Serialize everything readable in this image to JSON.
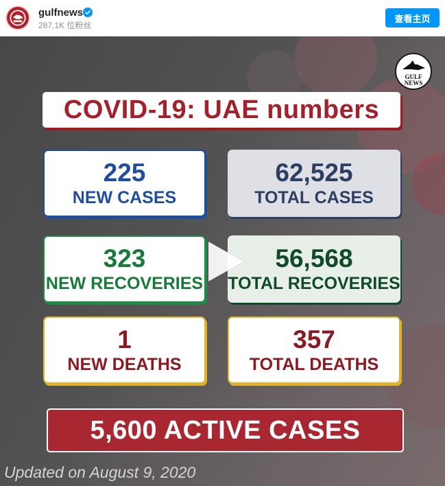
{
  "header": {
    "username": "gulfnews",
    "verified": true,
    "followers": "287.1K 位粉丝",
    "view_profile_label": "查看主页",
    "accent_color": "#0095f6"
  },
  "post": {
    "logo_text": "GULF NEWS",
    "title": "COVID-19: UAE numbers",
    "stats": [
      {
        "value": "225",
        "label": "NEW CASES",
        "color": "#1f4e9c"
      },
      {
        "value": "62,525",
        "label": "TOTAL CASES",
        "color": "#2c3f63"
      },
      {
        "value": "323",
        "label": "NEW RECOVERIES",
        "color": "#177a3a"
      },
      {
        "value": "56,568",
        "label": "TOTAL RECOVERIES",
        "color": "#0f4a29"
      },
      {
        "value": "1",
        "label": "NEW DEATHS",
        "color": "#8a1a22"
      },
      {
        "value": "357",
        "label": "TOTAL DEATHS",
        "color": "#8a1a22"
      }
    ],
    "active_cases": "5,600 ACTIVE CASES",
    "updated": "Updated on August 9, 2020",
    "play_icon": "play-icon"
  }
}
